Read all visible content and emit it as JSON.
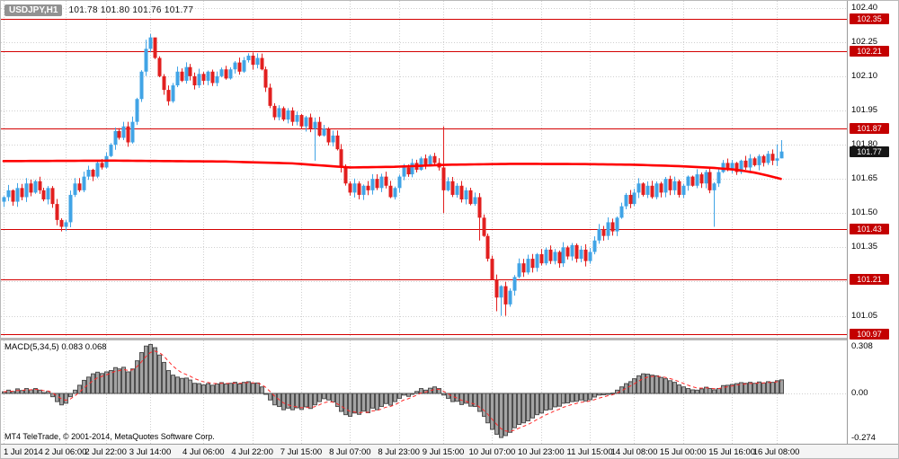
{
  "window": {
    "title_symbol": "USDJPY,H1",
    "quotes": "101.78 101.80 101.76 101.77"
  },
  "indicator_label": "MACD(5,34,5) 0.083 0.068",
  "footer": {
    "copyright": "MT4 TeleTrade, © 2001-2014, MetaQuotes Software Corp."
  },
  "price_axis": {
    "scale_labels": [
      {
        "text": "102.40",
        "value": 102.4
      },
      {
        "text": "102.25",
        "value": 102.25
      },
      {
        "text": "102.10",
        "value": 102.1
      },
      {
        "text": "101.95",
        "value": 101.95
      },
      {
        "text": "101.80",
        "value": 101.8
      },
      {
        "text": "101.65",
        "value": 101.65
      },
      {
        "text": "101.50",
        "value": 101.5
      },
      {
        "text": "101.35",
        "value": 101.35
      },
      {
        "text": "101.20",
        "value": 101.2
      },
      {
        "text": "101.05",
        "value": 101.05
      }
    ]
  },
  "macd_axis": {
    "labels": [
      {
        "text": "0.308",
        "value": 0.308
      },
      {
        "text": "0.00",
        "value": 0
      },
      {
        "text": "-0.274",
        "value": -0.274
      }
    ]
  },
  "time_axis": {
    "ticks": [
      {
        "text": "1 Jul 2014",
        "i": 0
      },
      {
        "text": "2 Jul 06:00",
        "i": 14
      },
      {
        "text": "2 Jul 22:00",
        "i": 23
      },
      {
        "text": "3 Jul 14:00",
        "i": 33
      },
      {
        "text": "4 Jul 06:00",
        "i": 45
      },
      {
        "text": "4 Jul 22:00",
        "i": 56
      },
      {
        "text": "7 Jul 15:00",
        "i": 67
      },
      {
        "text": "8 Jul 07:00",
        "i": 78
      },
      {
        "text": "8 Jul 23:00",
        "i": 89
      },
      {
        "text": "9 Jul 15:00",
        "i": 99
      },
      {
        "text": "10 Jul 07:00",
        "i": 110
      },
      {
        "text": "10 Jul 23:00",
        "i": 121
      },
      {
        "text": "11 Jul 15:00",
        "i": 132
      },
      {
        "text": "14 Jul 08:00",
        "i": 142
      },
      {
        "text": "15 Jul 00:00",
        "i": 153
      },
      {
        "text": "15 Jul 16:00",
        "i": 164
      },
      {
        "text": "16 Jul 08:00",
        "i": 174
      }
    ]
  },
  "colors": {
    "bull": "#41a4e6",
    "bear": "#e21f1f",
    "ma": "#ff0000",
    "level": "#d40000",
    "badge_level": "#c40000",
    "badge_current": "#161616",
    "grid": "#cfcfcf",
    "macd_fill": "#a3a3a3",
    "macd_stroke": "#4f4f4f",
    "signal": "#ff2a2a"
  },
  "chart_data": {
    "type": "candlestick",
    "title": "USDJPY,H1",
    "symbol": "USDJPY",
    "timeframe": "H1",
    "quote_ohlc": "101.78 101.80 101.76 101.77",
    "ylim": [
      100.95,
      102.43
    ],
    "plot_left": 3,
    "bar_step": 4.94,
    "first_open": 101.55,
    "wick_base": 0.02,
    "closes": [
      101.57,
      101.6,
      101.55,
      101.61,
      101.57,
      101.63,
      101.59,
      101.64,
      101.6,
      101.56,
      101.61,
      101.54,
      101.47,
      101.44,
      101.46,
      101.58,
      101.63,
      101.6,
      101.66,
      101.69,
      101.66,
      101.72,
      101.7,
      101.75,
      101.8,
      101.86,
      101.83,
      101.88,
      101.81,
      101.9,
      102.0,
      102.12,
      102.22,
      102.27,
      102.18,
      102.1,
      102.04,
      101.99,
      102.06,
      102.12,
      102.08,
      102.14,
      102.1,
      102.06,
      102.11,
      102.08,
      102.12,
      102.07,
      102.1,
      102.13,
      102.09,
      102.13,
      102.16,
      102.12,
      102.17,
      102.19,
      102.15,
      102.18,
      102.13,
      102.05,
      101.97,
      101.92,
      101.96,
      101.91,
      101.95,
      101.9,
      101.93,
      101.88,
      101.92,
      101.87,
      101.9,
      101.84,
      101.87,
      101.81,
      101.84,
      101.78,
      101.7,
      101.63,
      101.59,
      101.63,
      101.58,
      101.62,
      101.6,
      101.65,
      101.61,
      101.66,
      101.62,
      101.57,
      101.61,
      101.66,
      101.7,
      101.67,
      101.72,
      101.69,
      101.74,
      101.71,
      101.75,
      101.72,
      101.7,
      101.6,
      101.64,
      101.58,
      101.62,
      101.56,
      101.6,
      101.54,
      101.57,
      101.48,
      101.4,
      101.3,
      101.21,
      101.13,
      101.18,
      101.1,
      101.16,
      101.22,
      101.28,
      101.24,
      101.3,
      101.26,
      101.32,
      101.28,
      101.34,
      101.29,
      101.33,
      101.28,
      101.35,
      101.31,
      101.36,
      101.3,
      101.34,
      101.29,
      101.33,
      101.38,
      101.43,
      101.4,
      101.46,
      101.42,
      101.48,
      101.53,
      101.58,
      101.54,
      101.59,
      101.63,
      101.58,
      101.62,
      101.57,
      101.63,
      101.59,
      101.65,
      101.6,
      101.64,
      101.58,
      101.62,
      101.66,
      101.62,
      101.67,
      101.63,
      101.68,
      101.6,
      101.63,
      101.68,
      101.72,
      101.69,
      101.72,
      101.68,
      101.73,
      101.7,
      101.74,
      101.71,
      101.75,
      101.72,
      101.76,
      101.73,
      101.74,
      101.77
    ],
    "overrides": {
      "13": {
        "low": 101.42
      },
      "32": {
        "high": 102.26
      },
      "33": {
        "high": 102.285
      },
      "34": {
        "high": 102.24
      },
      "70": {
        "low": 101.73
      },
      "99": {
        "high": 101.88,
        "low": 101.5
      },
      "107": {
        "low": 101.38
      },
      "111": {
        "low": 101.07
      },
      "112": {
        "low": 101.05
      },
      "113": {
        "low": 101.05
      },
      "160": {
        "low": 101.44
      },
      "174": {
        "high": 101.8
      },
      "175": {
        "high": 101.82,
        "low": 101.74
      }
    },
    "ma_points": [
      [
        0,
        101.728
      ],
      [
        25,
        101.73
      ],
      [
        50,
        101.726
      ],
      [
        65,
        101.718
      ],
      [
        78,
        101.7
      ],
      [
        88,
        101.703
      ],
      [
        100,
        101.712
      ],
      [
        115,
        101.716
      ],
      [
        130,
        101.715
      ],
      [
        142,
        101.712
      ],
      [
        152,
        101.706
      ],
      [
        160,
        101.698
      ],
      [
        165,
        101.69
      ],
      [
        169,
        101.678
      ],
      [
        172,
        101.665
      ],
      [
        175,
        101.65
      ]
    ],
    "levels": [
      {
        "price": 102.35,
        "label": "102.35"
      },
      {
        "price": 102.21,
        "label": "102.21"
      },
      {
        "price": 101.87,
        "label": "101.87"
      },
      {
        "price": 101.43,
        "label": "101.43"
      },
      {
        "price": 101.21,
        "label": "101.21"
      },
      {
        "price": 100.97,
        "label": "100.97"
      }
    ],
    "current": {
      "price": 101.77,
      "label": "101.77"
    },
    "macd": {
      "type": "bar",
      "label": "MACD(5,34,5) 0.083 0.068",
      "value": 0.083,
      "signal": 0.068,
      "signal_period": 5,
      "ylim": [
        -0.308,
        0.3245
      ],
      "values": [
        0.01,
        0.02,
        0.012,
        0.028,
        0.018,
        0.03,
        0.022,
        0.03,
        0.02,
        0.005,
        0.012,
        -0.02,
        -0.05,
        -0.07,
        -0.06,
        -0.02,
        0.02,
        0.05,
        0.08,
        0.1,
        0.12,
        0.13,
        0.122,
        0.132,
        0.14,
        0.158,
        0.15,
        0.16,
        0.132,
        0.15,
        0.2,
        0.25,
        0.29,
        0.3,
        0.28,
        0.235,
        0.19,
        0.14,
        0.112,
        0.1,
        0.092,
        0.094,
        0.082,
        0.062,
        0.06,
        0.052,
        0.06,
        0.05,
        0.058,
        0.066,
        0.058,
        0.062,
        0.068,
        0.058,
        0.068,
        0.072,
        0.062,
        0.064,
        0.04,
        0.0,
        -0.04,
        -0.07,
        -0.08,
        -0.1,
        -0.09,
        -0.1,
        -0.088,
        -0.098,
        -0.082,
        -0.092,
        -0.07,
        -0.05,
        -0.032,
        -0.04,
        -0.052,
        -0.08,
        -0.11,
        -0.13,
        -0.14,
        -0.12,
        -0.128,
        -0.108,
        -0.118,
        -0.09,
        -0.1,
        -0.08,
        -0.062,
        -0.072,
        -0.05,
        -0.03,
        -0.01,
        -0.018,
        0.0,
        0.012,
        0.03,
        0.02,
        0.032,
        0.04,
        0.03,
        -0.01,
        -0.03,
        -0.05,
        -0.048,
        -0.068,
        -0.06,
        -0.078,
        -0.08,
        -0.11,
        -0.14,
        -0.18,
        -0.22,
        -0.25,
        -0.27,
        -0.258,
        -0.238,
        -0.21,
        -0.19,
        -0.18,
        -0.168,
        -0.15,
        -0.13,
        -0.12,
        -0.102,
        -0.098,
        -0.082,
        -0.078,
        -0.06,
        -0.058,
        -0.05,
        -0.048,
        -0.04,
        -0.046,
        -0.038,
        -0.022,
        -0.01,
        -0.008,
        0.0,
        0.002,
        0.02,
        0.04,
        0.06,
        0.072,
        0.09,
        0.108,
        0.12,
        0.118,
        0.112,
        0.108,
        0.098,
        0.09,
        0.078,
        0.068,
        0.052,
        0.04,
        0.03,
        0.022,
        0.02,
        0.028,
        0.038,
        0.03,
        0.022,
        0.03,
        0.048,
        0.05,
        0.055,
        0.06,
        0.066,
        0.062,
        0.068,
        0.062,
        0.07,
        0.064,
        0.072,
        0.068,
        0.078,
        0.083
      ]
    }
  }
}
